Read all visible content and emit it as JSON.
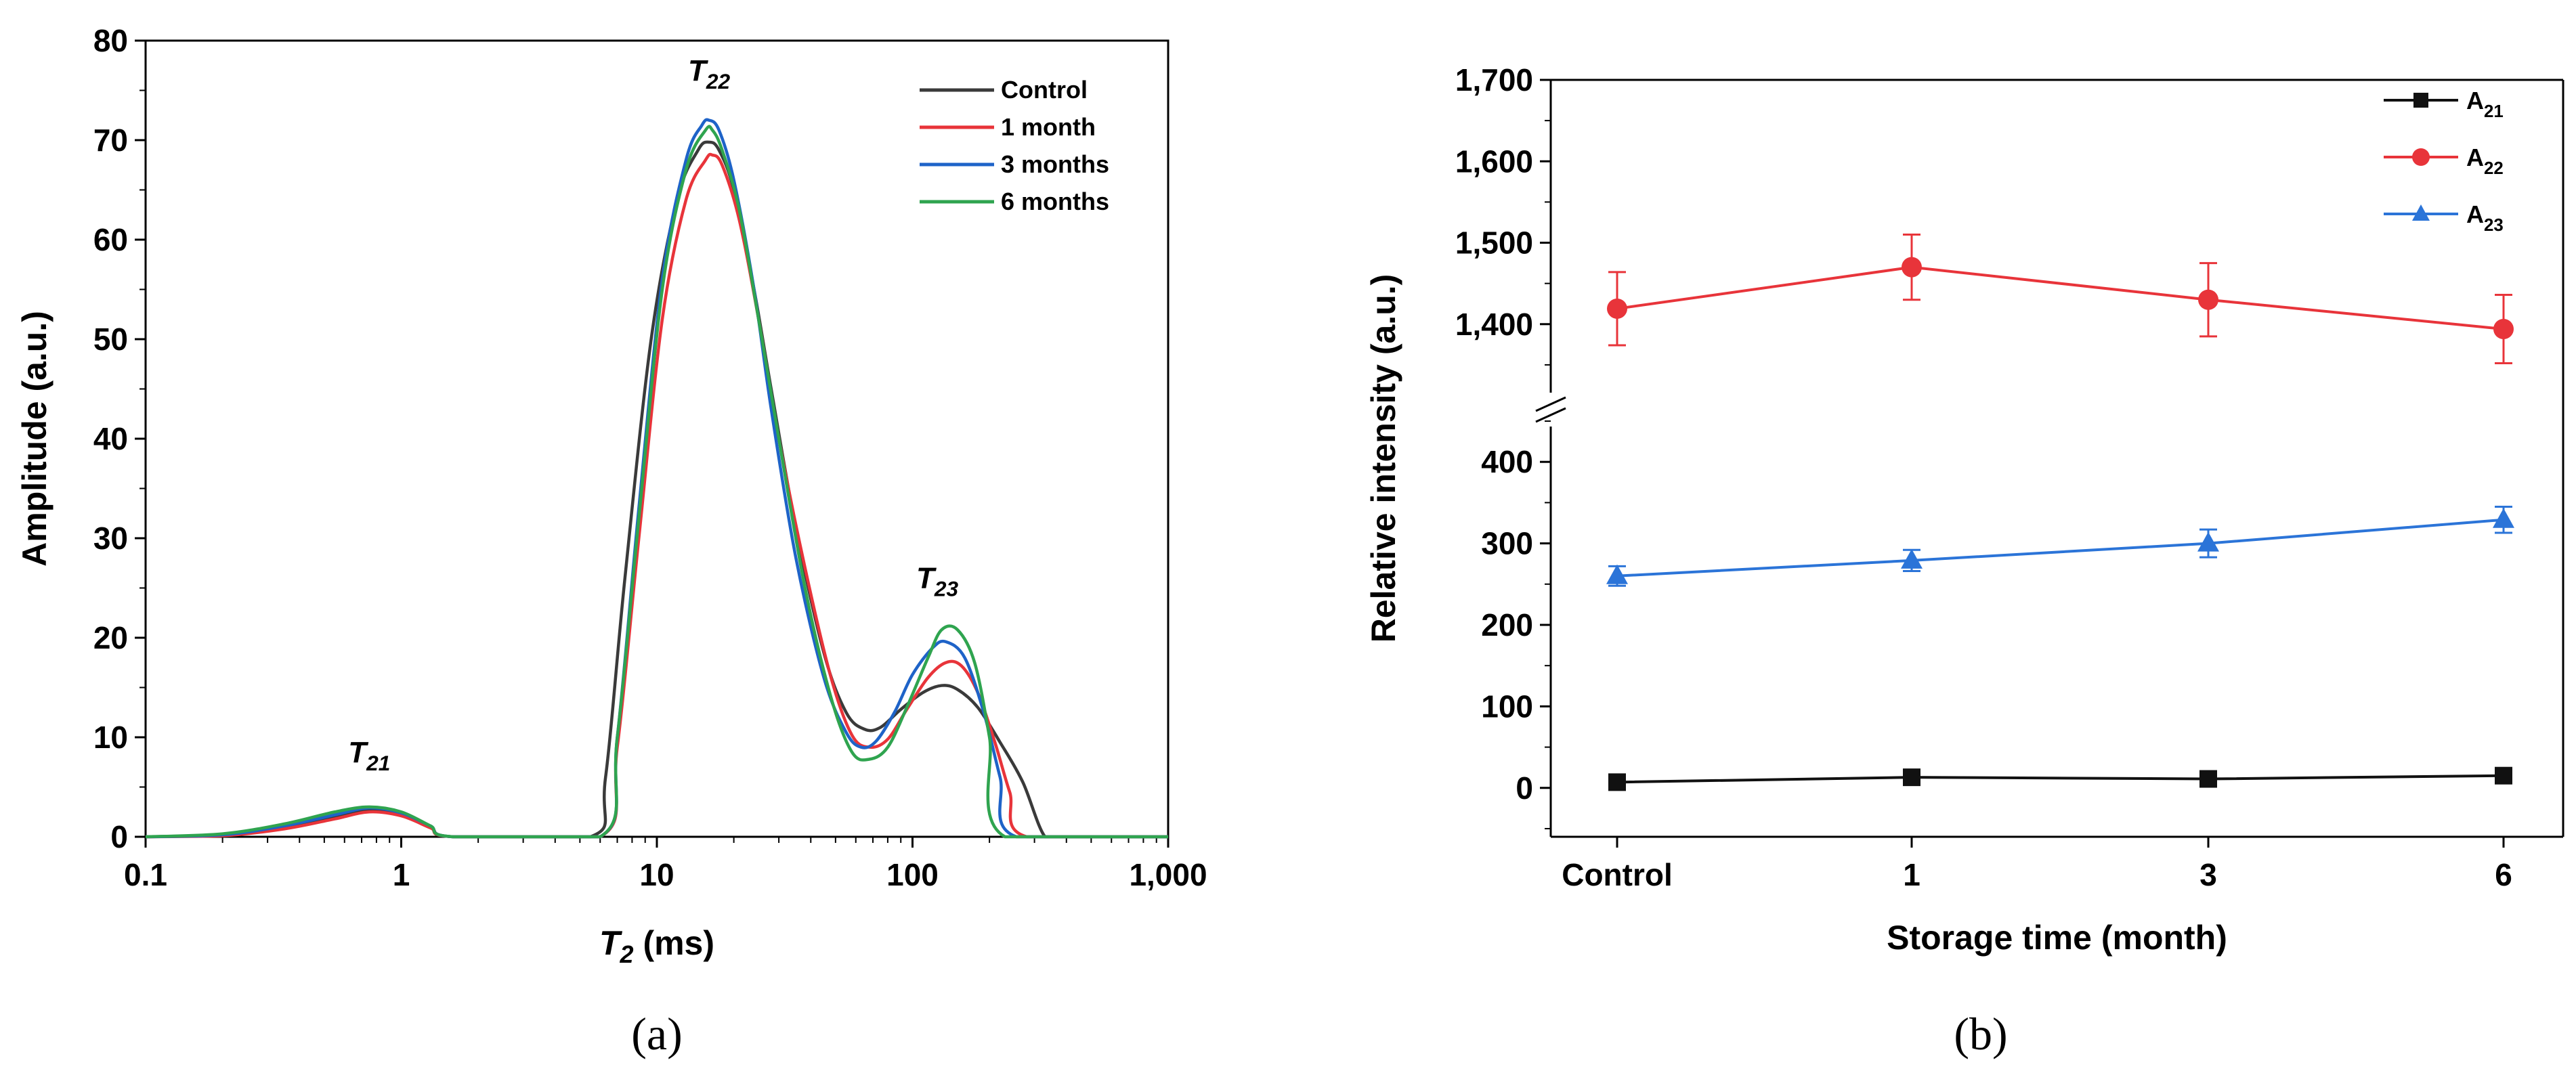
{
  "chart_data": [
    {
      "panel": "a",
      "type": "line",
      "caption": "(a)",
      "xscale": "log",
      "xlabel_var": "T",
      "xlabel_sub": "2",
      "xlabel_unit": " (ms)",
      "ylabel": "Amplitude (a.u.)",
      "xlim": [
        0.1,
        1000
      ],
      "ylim": [
        0,
        80
      ],
      "x_ticks": [
        0.1,
        1,
        10,
        100,
        1000
      ],
      "x_tick_labels": [
        "0.1",
        "1",
        "10",
        "100",
        "1,000"
      ],
      "y_ticks": [
        0,
        10,
        20,
        30,
        40,
        50,
        60,
        70,
        80
      ],
      "y_tick_labels": [
        "0",
        "10",
        "20",
        "30",
        "40",
        "50",
        "60",
        "70",
        "80"
      ],
      "legend_position": "top-right",
      "peak_labels": [
        {
          "var": "T",
          "sub": "21",
          "x": 0.75,
          "y": 7.5
        },
        {
          "var": "T",
          "sub": "22",
          "x": 16,
          "y": 76
        },
        {
          "var": "T",
          "sub": "23",
          "x": 125,
          "y": 25
        }
      ],
      "series": [
        {
          "name": "Control",
          "color": "#3a3a3a",
          "x": [
            0.1,
            0.2,
            0.35,
            0.55,
            0.75,
            1.0,
            1.3,
            1.6,
            5.5,
            6.3,
            7.5,
            9.5,
            12,
            14.5,
            16,
            17.5,
            20,
            24,
            28,
            35,
            45,
            55,
            65,
            75,
            90,
            110,
            130,
            150,
            180,
            220,
            270,
            330,
            400,
            1000
          ],
          "y": [
            0,
            0.2,
            1.0,
            2.0,
            2.7,
            2.2,
            1.0,
            0,
            0,
            6,
            26,
            50,
            64,
            69,
            69.8,
            69,
            65,
            55,
            45,
            31,
            18.5,
            12.5,
            10.8,
            11.0,
            12.8,
            14.5,
            15.2,
            14.8,
            13,
            9.5,
            5.5,
            0,
            0,
            0
          ]
        },
        {
          "name": "1 month",
          "color": "#e8343a",
          "x": [
            0.1,
            0.2,
            0.35,
            0.55,
            0.75,
            1.0,
            1.3,
            1.6,
            6.0,
            7.0,
            8.5,
            10.5,
            13,
            15.5,
            16.5,
            18,
            21,
            25,
            30,
            38,
            48,
            58,
            68,
            80,
            95,
            115,
            135,
            155,
            180,
            210,
            240,
            280,
            1000
          ],
          "y": [
            0,
            0.1,
            0.8,
            1.8,
            2.5,
            2.1,
            0.9,
            0,
            0,
            9,
            30,
            52,
            64,
            68,
            68.5,
            67.5,
            62,
            52,
            40,
            27,
            16,
            10.2,
            9.0,
            9.8,
            12.8,
            16,
            17.5,
            17.2,
            14.5,
            9.5,
            4.5,
            0,
            0
          ]
        },
        {
          "name": "3 months",
          "color": "#1e63c8",
          "x": [
            0.1,
            0.2,
            0.35,
            0.55,
            0.75,
            1.0,
            1.3,
            1.6,
            6.0,
            7.0,
            8.5,
            10.5,
            13,
            15,
            16,
            17.5,
            20,
            24,
            28,
            35,
            45,
            55,
            63,
            72,
            85,
            100,
            120,
            135,
            160,
            190,
            220,
            255,
            1000
          ],
          "y": [
            0,
            0.2,
            1.1,
            2.2,
            2.9,
            2.4,
            1.1,
            0,
            0,
            10,
            33,
            56,
            68,
            71.5,
            72,
            71,
            66,
            55,
            43,
            28,
            16,
            10.5,
            9.0,
            9.6,
            12.5,
            16.3,
            19.0,
            19.6,
            18.0,
            12.5,
            6,
            0,
            0
          ]
        },
        {
          "name": "6 months",
          "color": "#2fa44f",
          "x": [
            0.1,
            0.2,
            0.35,
            0.55,
            0.75,
            1.0,
            1.3,
            1.6,
            6.0,
            7.0,
            8.5,
            10.5,
            13,
            15.5,
            16.5,
            18,
            21,
            25,
            30,
            38,
            48,
            58,
            68,
            80,
            95,
            115,
            130,
            150,
            175,
            200,
            230,
            1000
          ],
          "y": [
            0,
            0.3,
            1.3,
            2.5,
            3.0,
            2.5,
            1.1,
            0,
            0,
            10,
            32,
            55,
            67,
            71,
            71,
            69,
            63,
            52,
            40,
            25,
            14,
            8.5,
            7.8,
            9.0,
            13,
            18,
            20.8,
            20.8,
            17.5,
            10,
            0,
            0
          ]
        }
      ]
    },
    {
      "panel": "b",
      "type": "line",
      "caption": "(b)",
      "broken_axis": true,
      "xlabel": "Storage time (month)",
      "ylabel": "Relative intensity (a.u.)",
      "categories": [
        "Control",
        "1",
        "3",
        "6"
      ],
      "upper_ylim": [
        1320,
        1700
      ],
      "lower_ylim": [
        -60,
        460
      ],
      "upper_y_ticks": [
        1400,
        1500,
        1600,
        1700
      ],
      "upper_y_tick_labels": [
        "1,400",
        "1,500",
        "1,600",
        "1,700"
      ],
      "lower_y_ticks": [
        0,
        100,
        200,
        300,
        400
      ],
      "lower_y_tick_labels": [
        "0",
        "100",
        "200",
        "300",
        "400"
      ],
      "legend_position": "top-right",
      "series": [
        {
          "name": "A",
          "sub": "21",
          "color": "#111111",
          "marker": "square",
          "values": [
            7,
            13,
            11,
            15
          ],
          "errors": [
            2,
            3,
            2,
            3
          ]
        },
        {
          "name": "A",
          "sub": "22",
          "color": "#e8343a",
          "marker": "circle",
          "values": [
            1419,
            1470,
            1430,
            1394
          ],
          "errors": [
            45,
            40,
            45,
            42
          ]
        },
        {
          "name": "A",
          "sub": "23",
          "color": "#2b74d8",
          "marker": "triangle",
          "values": [
            260,
            279,
            300,
            329
          ],
          "errors": [
            12,
            13,
            17,
            16
          ]
        }
      ]
    }
  ]
}
